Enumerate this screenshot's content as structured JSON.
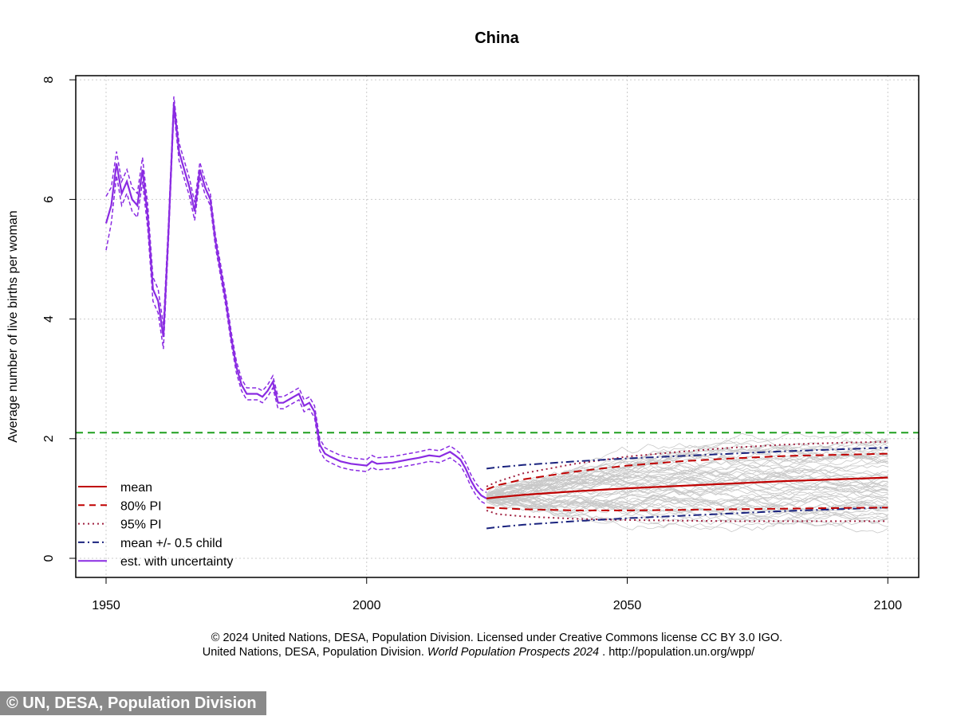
{
  "chart_data": {
    "type": "line",
    "title": "China",
    "xlabel": "",
    "ylabel": "Average number of live births per woman",
    "xlim": [
      1944,
      2106
    ],
    "ylim": [
      -0.3,
      8.1
    ],
    "xticks": [
      1950,
      2000,
      2050,
      2100
    ],
    "yticks": [
      0,
      2,
      4,
      6,
      8
    ],
    "grid": true,
    "legend_position": "bottom-left",
    "legend": [
      "mean",
      "80% PI",
      "95% PI",
      "mean +/- 0.5 child",
      "est. with uncertainty"
    ],
    "replacement_level": 2.1,
    "estimate": {
      "x": [
        1950,
        1951,
        1952,
        1953,
        1954,
        1955,
        1956,
        1957,
        1958,
        1959,
        1960,
        1961,
        1962,
        1963,
        1964,
        1965,
        1966,
        1967,
        1968,
        1969,
        1970,
        1971,
        1972,
        1973,
        1974,
        1975,
        1976,
        1977,
        1978,
        1979,
        1980,
        1981,
        1982,
        1983,
        1984,
        1985,
        1986,
        1987,
        1988,
        1989,
        1990,
        1991,
        1992,
        1993,
        1995,
        1997,
        2000,
        2001,
        2002,
        2005,
        2008,
        2010,
        2012,
        2014,
        2016,
        2017,
        2018,
        2019,
        2020,
        2021,
        2022,
        2023
      ],
      "y": [
        5.6,
        5.9,
        6.6,
        6.1,
        6.3,
        6.0,
        5.9,
        6.5,
        5.7,
        4.5,
        4.3,
        3.7,
        5.5,
        7.6,
        6.8,
        6.5,
        6.2,
        5.8,
        6.5,
        6.2,
        6.0,
        5.3,
        4.8,
        4.3,
        3.7,
        3.2,
        2.9,
        2.75,
        2.75,
        2.75,
        2.7,
        2.8,
        2.95,
        2.6,
        2.6,
        2.65,
        2.7,
        2.75,
        2.55,
        2.6,
        2.45,
        1.9,
        1.75,
        1.7,
        1.62,
        1.58,
        1.55,
        1.62,
        1.58,
        1.6,
        1.65,
        1.68,
        1.72,
        1.7,
        1.78,
        1.72,
        1.65,
        1.5,
        1.3,
        1.15,
        1.05,
        1.0
      ],
      "uncertainty": [
        0.45,
        0.3,
        0.2,
        0.2,
        0.2,
        0.2,
        0.2,
        0.2,
        0.2,
        0.2,
        0.2,
        0.2,
        0.15,
        0.12,
        0.15,
        0.15,
        0.15,
        0.15,
        0.12,
        0.12,
        0.1,
        0.1,
        0.1,
        0.1,
        0.1,
        0.1,
        0.1,
        0.1,
        0.1,
        0.1,
        0.1,
        0.1,
        0.1,
        0.1,
        0.1,
        0.1,
        0.1,
        0.1,
        0.1,
        0.1,
        0.1,
        0.1,
        0.1,
        0.1,
        0.1,
        0.1,
        0.1,
        0.1,
        0.1,
        0.1,
        0.1,
        0.1,
        0.1,
        0.1,
        0.1,
        0.1,
        0.1,
        0.1,
        0.1,
        0.1,
        0.1,
        0.1
      ]
    },
    "projection": {
      "x": [
        2023,
        2025,
        2030,
        2040,
        2050,
        2060,
        2070,
        2080,
        2090,
        2100
      ],
      "mean": [
        1.0,
        1.02,
        1.06,
        1.12,
        1.17,
        1.21,
        1.25,
        1.29,
        1.32,
        1.35
      ],
      "pi80_upper": [
        1.15,
        1.22,
        1.32,
        1.45,
        1.55,
        1.62,
        1.67,
        1.71,
        1.73,
        1.75
      ],
      "pi80_lower": [
        0.85,
        0.84,
        0.82,
        0.8,
        0.8,
        0.81,
        0.82,
        0.83,
        0.84,
        0.85
      ],
      "pi95_upper": [
        1.2,
        1.28,
        1.42,
        1.58,
        1.7,
        1.78,
        1.85,
        1.9,
        1.93,
        1.95
      ],
      "pi95_lower": [
        0.8,
        0.74,
        0.7,
        0.66,
        0.64,
        0.63,
        0.62,
        0.62,
        0.62,
        0.62
      ],
      "mean_plus_half": [
        1.5,
        1.52,
        1.56,
        1.62,
        1.67,
        1.71,
        1.75,
        1.79,
        1.82,
        1.85
      ],
      "mean_minus_half": [
        0.5,
        0.52,
        0.56,
        0.62,
        0.67,
        0.71,
        0.75,
        0.79,
        0.82,
        0.85
      ]
    }
  },
  "colors": {
    "mean": "#c00000",
    "pi80": "#c00000",
    "pi95": "#a02040",
    "half": "#1a237e",
    "est": "#8a2be2",
    "traj": "#c8c8c8",
    "replacement": "#1f9f1f"
  },
  "footer": {
    "line1": "© 2024 United Nations, DESA, Population Division. Licensed under Creative Commons license CC BY 3.0 IGO.",
    "line2a": "United Nations, DESA, Population Division. ",
    "line2b": "World Population Prospects 2024",
    "line2c": " . http://population.un.org/wpp/"
  },
  "watermark": "© UN, DESA, Population Division"
}
